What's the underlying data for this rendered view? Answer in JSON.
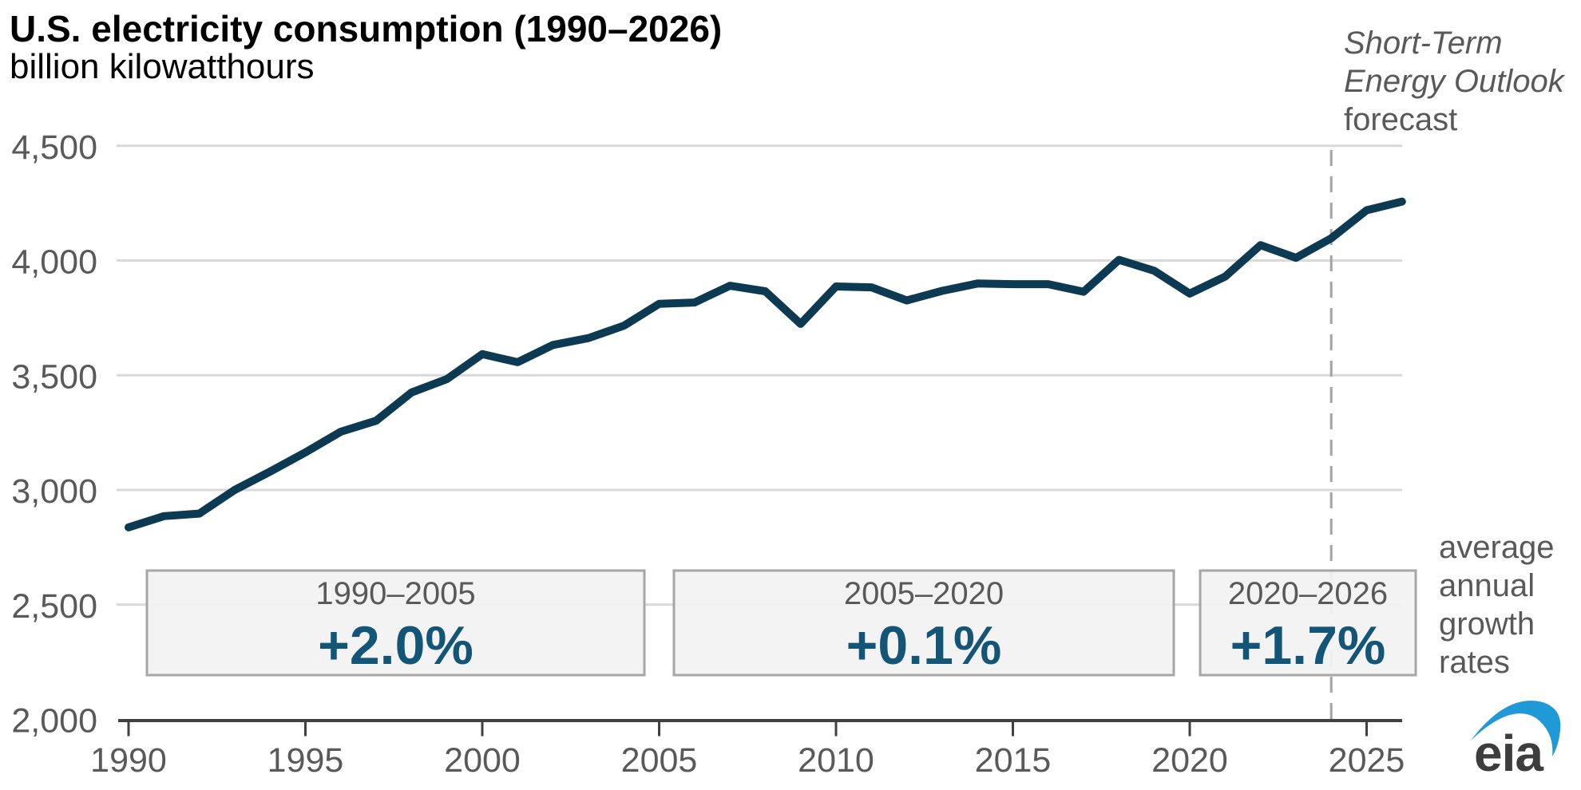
{
  "header": {
    "title": "U.S. electricity consumption (1990–2026)",
    "subtitle": "billion kilowatthours"
  },
  "forecast_note": {
    "line1": "Short-Term",
    "line2": "Energy Outlook",
    "line3": "forecast"
  },
  "right_note": {
    "lines": [
      "average",
      "annual",
      "growth",
      "rates"
    ]
  },
  "logo": {
    "text": "eia"
  },
  "colors": {
    "line": "#0c3a53",
    "accent_text": "#135577",
    "grid": "#d9d9d9",
    "axis": "#404040",
    "tick_label": "#595959",
    "box_fill": "#f2f2f2",
    "box_border": "#a6a6a6",
    "dashed": "#a3a3a3",
    "logo_swoosh": "#1f9ad6",
    "logo_text": "#3d3d3d"
  },
  "chart_data": {
    "type": "line",
    "title": "U.S. electricity consumption (1990–2026)",
    "ylabel": "billion kilowatthours",
    "xlabel": "",
    "ylim": [
      2000,
      4500
    ],
    "grid": "horizontal",
    "yticks": [
      2000,
      2500,
      3000,
      3500,
      4000,
      4500
    ],
    "xticks": [
      1990,
      1995,
      2000,
      2005,
      2010,
      2015,
      2020,
      2025
    ],
    "forecast_start_year": 2024,
    "forecast_label": "Short-Term Energy Outlook forecast",
    "x": [
      1990,
      1991,
      1992,
      1993,
      1994,
      1995,
      1996,
      1997,
      1998,
      1999,
      2000,
      2001,
      2002,
      2003,
      2004,
      2005,
      2006,
      2007,
      2008,
      2009,
      2010,
      2011,
      2012,
      2013,
      2014,
      2015,
      2016,
      2017,
      2018,
      2019,
      2020,
      2021,
      2022,
      2023,
      2024,
      2025,
      2026
    ],
    "series": [
      {
        "name": "U.S. electricity consumption",
        "values": [
          2837,
          2886,
          2897,
          3000,
          3080,
          3164,
          3254,
          3302,
          3425,
          3483,
          3592,
          3557,
          3632,
          3662,
          3716,
          3811,
          3817,
          3890,
          3866,
          3724,
          3887,
          3883,
          3826,
          3868,
          3900,
          3897,
          3897,
          3864,
          4003,
          3955,
          3856,
          3930,
          4067,
          4012,
          4097,
          4219,
          4257
        ]
      }
    ],
    "growth_boxes": [
      {
        "period": "1990–2005",
        "rate": "+2.0%"
      },
      {
        "period": "2005–2020",
        "rate": "+0.1%"
      },
      {
        "period": "2020–2026",
        "rate": "+1.7%"
      }
    ],
    "growth_boxes_note": "average annual growth rates"
  }
}
